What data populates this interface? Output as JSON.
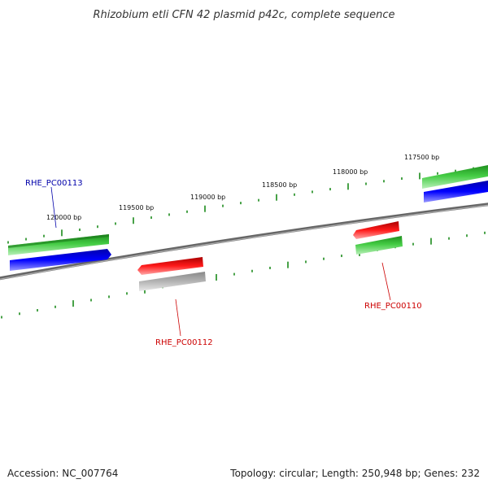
{
  "title": "Rhizobium etli CFN 42 plasmid p42c, complete sequence",
  "footer": {
    "accession": "Accession: NC_007764",
    "summary": "Topology: circular; Length: 250,948 bp; Genes: 232"
  },
  "ruler": {
    "tick_labels": [
      "117500 bp",
      "118000 bp",
      "118500 bp",
      "119000 bp",
      "119500 bp",
      "120000 bp"
    ]
  },
  "gene_labels": [
    {
      "name": "RHE_PC00113",
      "color": "#0000aa"
    },
    {
      "name": "RHE_PC00112",
      "color": "#cc0000"
    },
    {
      "name": "RHE_PC00110",
      "color": "#cc0000"
    }
  ],
  "colors": {
    "backbone": "#777777",
    "tick": "#1a8a1a",
    "forward_orf": "#33bb33",
    "forward_cds": "#0000ee",
    "reverse_cds": "#ee0000",
    "reverse_orf_green": "#33bb33",
    "reverse_orf_gray": "#aaaaaa"
  }
}
